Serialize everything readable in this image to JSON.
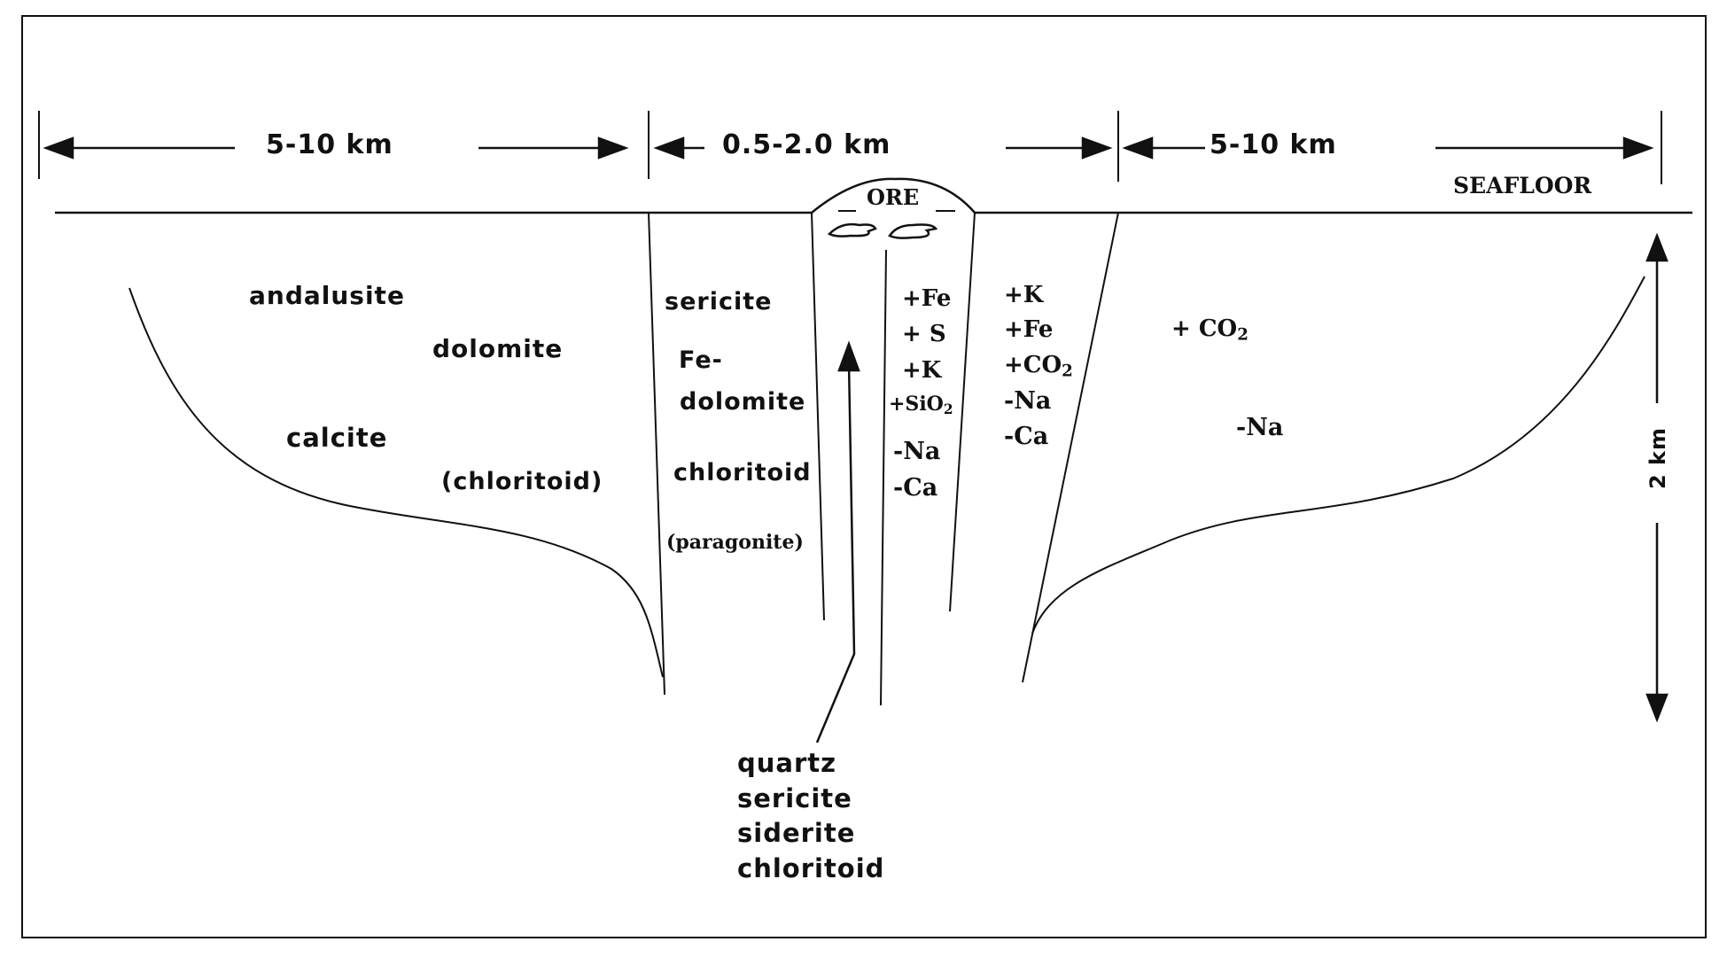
{
  "dimensions": {
    "left_width": "5-10 km",
    "center_width": "0.5-2.0 km",
    "right_width": "5-10 km",
    "depth": "2 km"
  },
  "seafloor_label": "SEAFLOOR",
  "ore_label": "ORE",
  "outer_zone_minerals": [
    "andalusite",
    "dolomite",
    "calcite",
    "(chloritoid)"
  ],
  "inner_zone_minerals": [
    "sericite",
    "Fe-",
    "dolomite",
    "chloritoid",
    "(paragonite)"
  ],
  "core_chemistry": [
    "+Fe",
    "+ S",
    "+K",
    "+SiO",
    "2",
    "-Na",
    "-Ca"
  ],
  "alteration_chemistry": [
    "+K",
    "+Fe",
    "+CO",
    "2",
    "-Na",
    "-Ca"
  ],
  "distal_chemistry": [
    "+ CO",
    "2",
    "-Na"
  ],
  "pipe_minerals": [
    "quartz",
    "sericite",
    "siderite",
    "chloritoid"
  ],
  "colors": {
    "ink": "#111111",
    "background": "#ffffff"
  }
}
